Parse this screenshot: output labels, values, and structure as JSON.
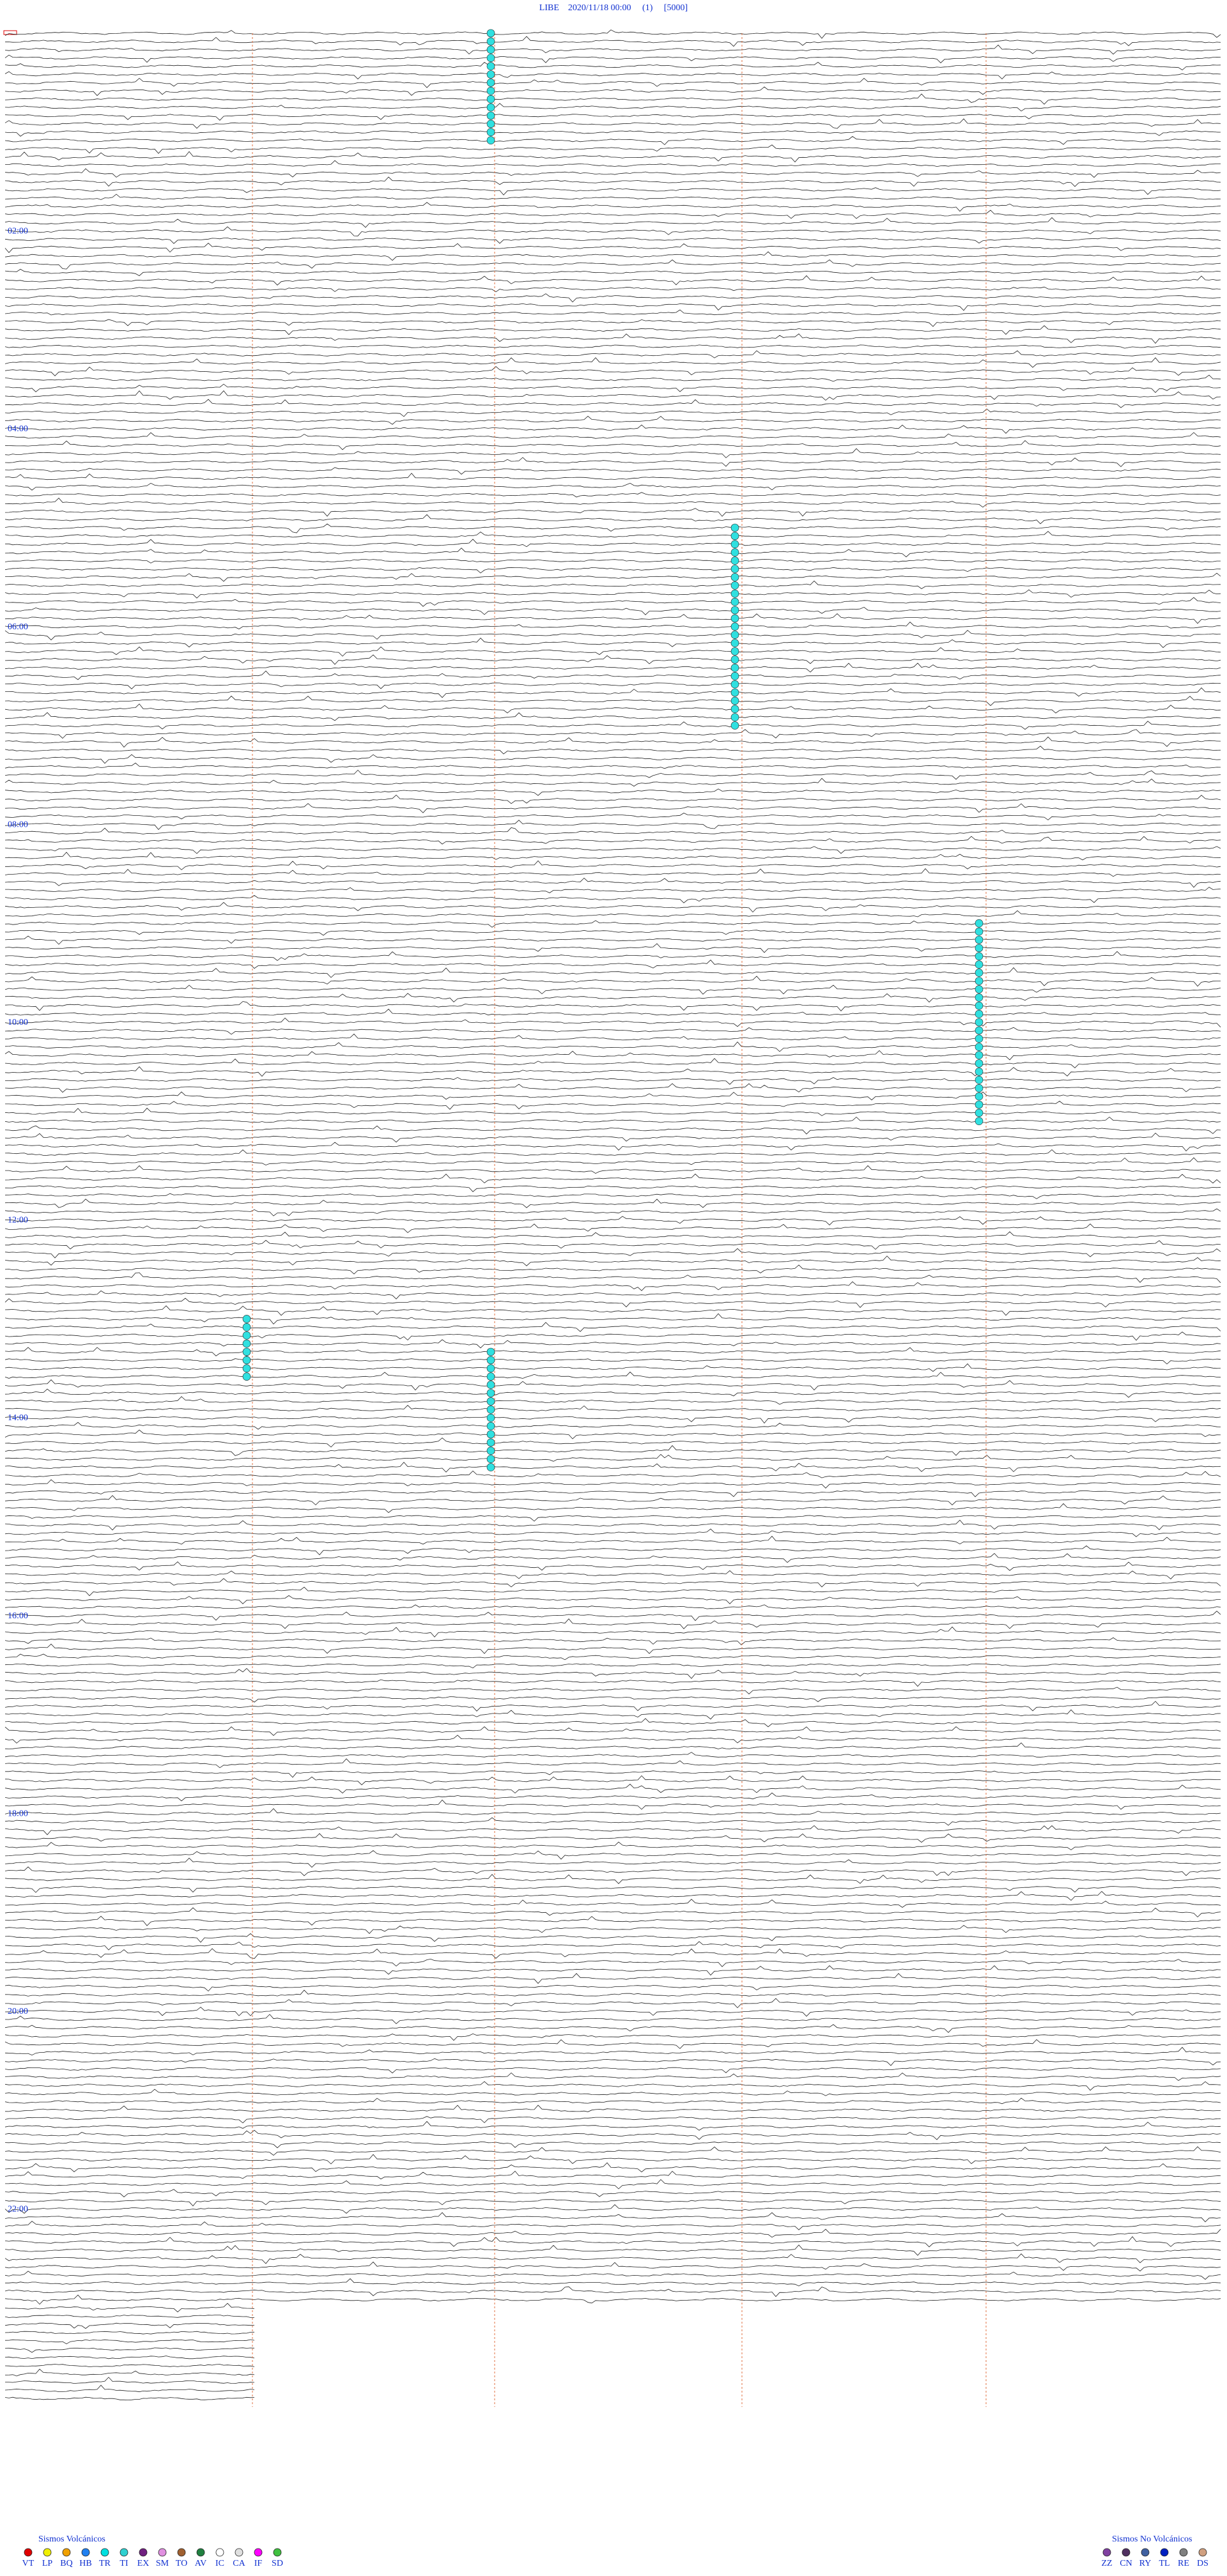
{
  "header": {
    "title": "LIBE    2020/11/18 00:00     (1)     [5000]"
  },
  "time_labels": [
    "02:00",
    "04:00",
    "06:00",
    "08:00",
    "10:00",
    "12:00",
    "14:00",
    "16:00",
    "18:00",
    "20:00",
    "22:00"
  ],
  "legend_volcanic": {
    "title": "Sismos Volcánicos",
    "items": [
      {
        "code": "VT",
        "color": "#e00000"
      },
      {
        "code": "LP",
        "color": "#f0f000"
      },
      {
        "code": "BQ",
        "color": "#f0a000"
      },
      {
        "code": "HB",
        "color": "#2080f0"
      },
      {
        "code": "TR",
        "color": "#00e0e0"
      },
      {
        "code": "TI",
        "color": "#30d0d0"
      },
      {
        "code": "EX",
        "color": "#702080"
      },
      {
        "code": "SM",
        "color": "#e090e0"
      },
      {
        "code": "TO",
        "color": "#a06030"
      },
      {
        "code": "AV",
        "color": "#208040"
      },
      {
        "code": "IC",
        "color": "#ffffff"
      },
      {
        "code": "CA",
        "color": "#e0e0e0"
      },
      {
        "code": "IF",
        "color": "#ff00ff"
      },
      {
        "code": "SD",
        "color": "#40c040"
      }
    ]
  },
  "legend_nonvolcanic": {
    "title": "Sismos No Volcánicos",
    "items": [
      {
        "code": "ZZ",
        "color": "#8040a0"
      },
      {
        "code": "CN",
        "color": "#503060"
      },
      {
        "code": "RY",
        "color": "#4060a0"
      },
      {
        "code": "TL",
        "color": "#0020c0"
      },
      {
        "code": "RE",
        "color": "#808080"
      },
      {
        "code": "DS",
        "color": "#d0a080"
      }
    ]
  }
}
